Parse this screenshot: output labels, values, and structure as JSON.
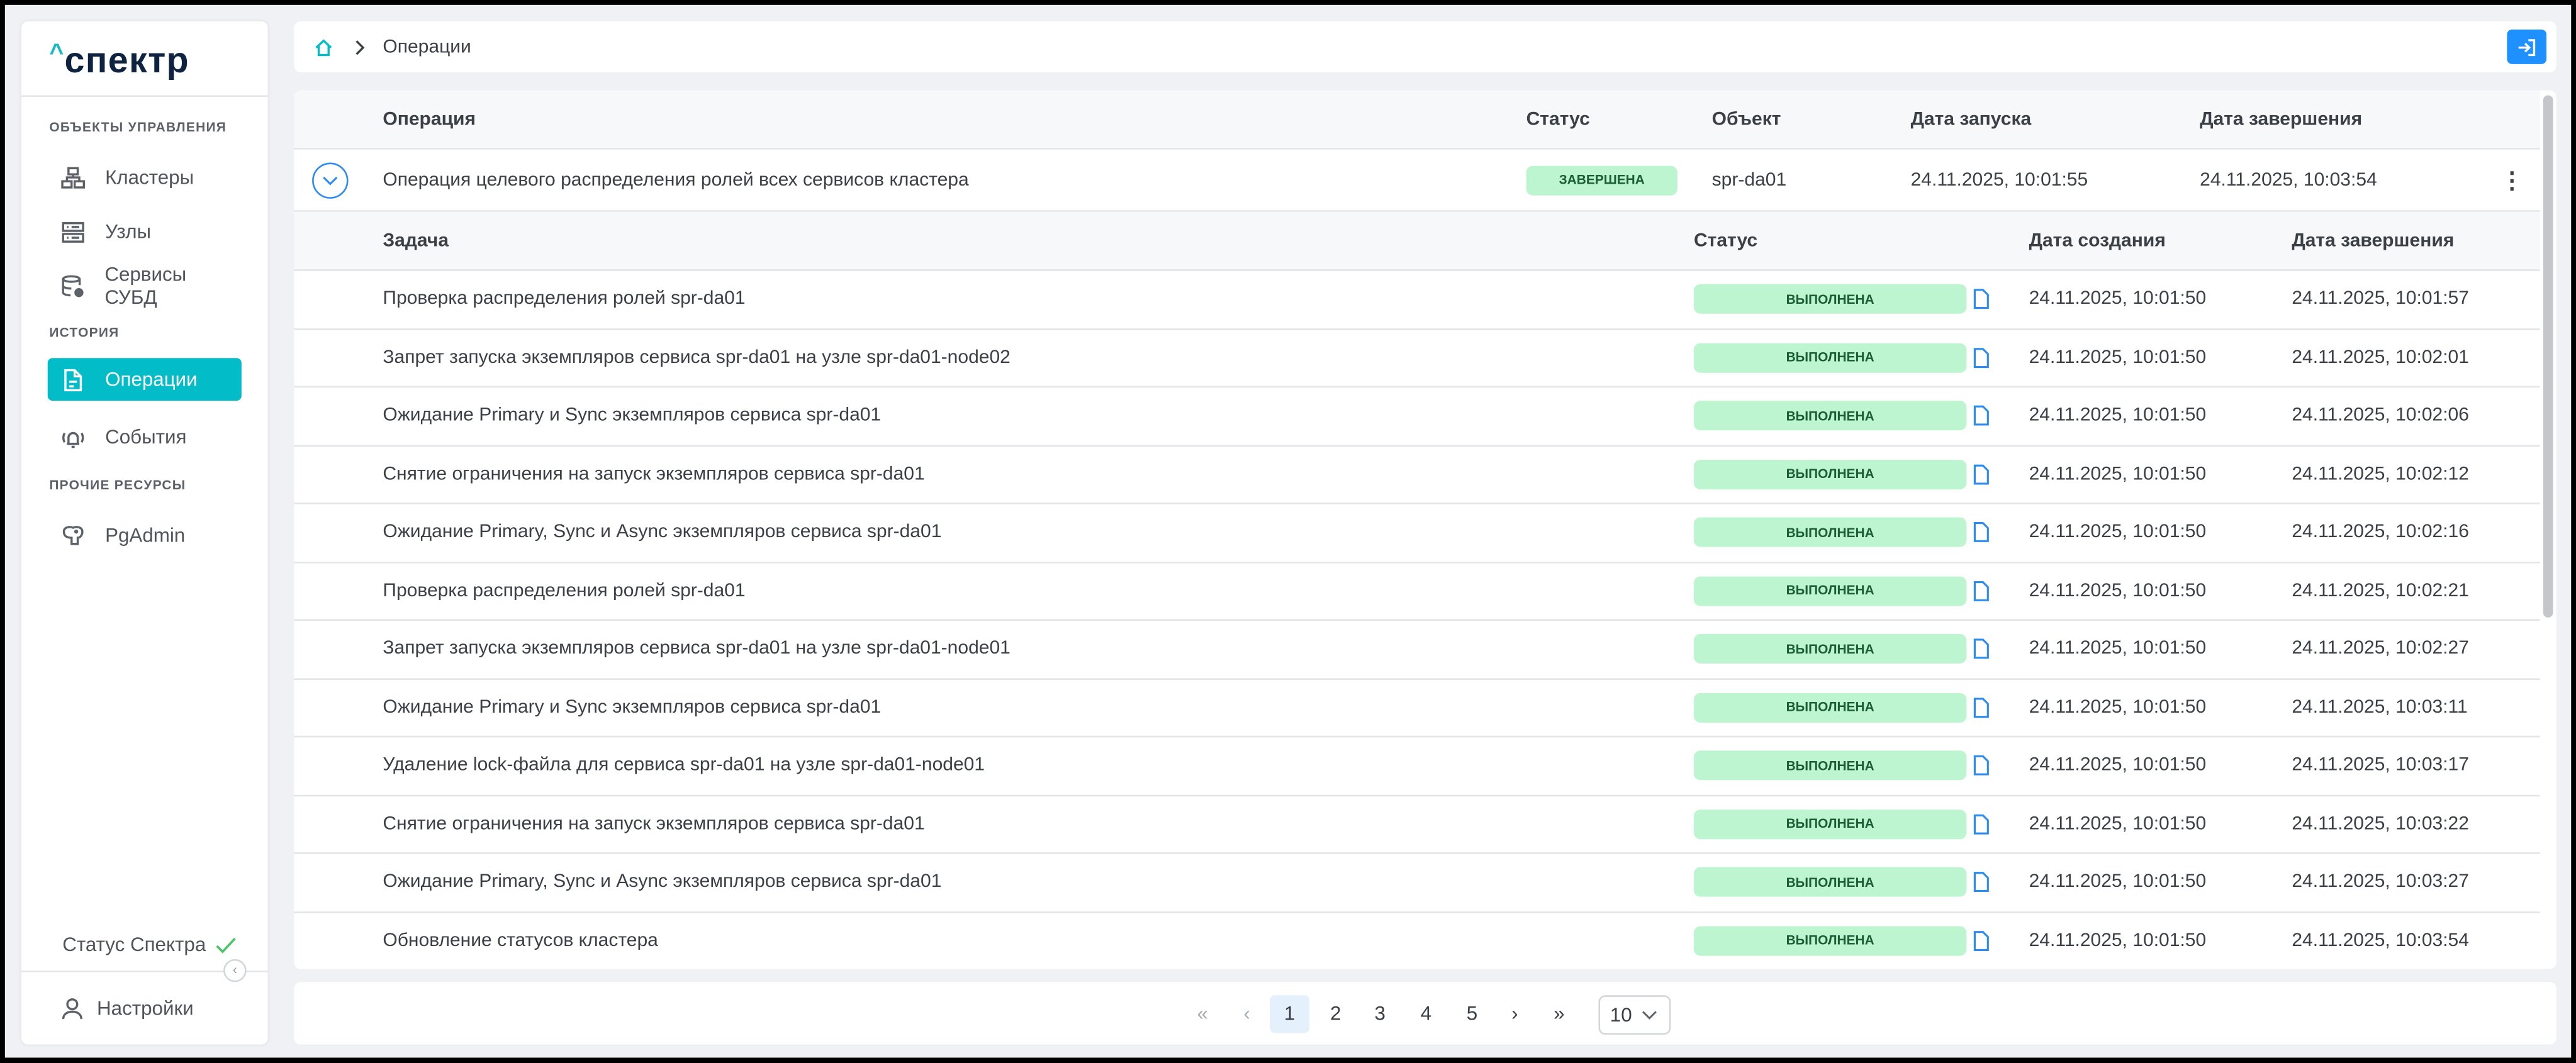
{
  "logo": {
    "caret": "^",
    "text": "спектр"
  },
  "sidebar": {
    "sections": [
      "ОБЪЕКТЫ УПРАВЛЕНИЯ",
      "ИСТОРИЯ",
      "ПРОЧИЕ РЕСУРСЫ"
    ],
    "items": [
      {
        "label": "Кластеры",
        "icon": "clusters-icon"
      },
      {
        "label": "Узлы",
        "icon": "server-icon"
      },
      {
        "label": "Сервисы СУБД",
        "icon": "database-gear-icon"
      },
      {
        "label": "Операции",
        "icon": "document-icon",
        "active": true
      },
      {
        "label": "События",
        "icon": "alarm-bell-icon"
      },
      {
        "label": "PgAdmin",
        "icon": "postgres-elephant-icon"
      }
    ],
    "status_label": "Статус Спектра",
    "settings_label": "Настройки"
  },
  "breadcrumb": {
    "current": "Операции"
  },
  "colors": {
    "accent": "#02bcc8",
    "primary": "#1e90ff",
    "badge_bg": "#bdf5d0",
    "badge_text": "#1b5e35"
  },
  "operations": {
    "headers": [
      "Операция",
      "Статус",
      "Объект",
      "Дата запуска",
      "Дата завершения"
    ],
    "row": {
      "name": "Операция целевого распределения ролей всех сервисов кластера",
      "status": "ЗАВЕРШЕНА",
      "object": "spr-da01",
      "started": "24.11.2025, 10:01:55",
      "finished": "24.11.2025, 10:03:54"
    }
  },
  "tasks": {
    "headers": [
      "Задача",
      "Статус",
      "Дата создания",
      "Дата завершения"
    ],
    "rows": [
      {
        "name": "Проверка распределения ролей spr-da01",
        "status": "ВЫПОЛНЕНА",
        "created": "24.11.2025, 10:01:50",
        "finished": "24.11.2025, 10:01:57"
      },
      {
        "name": "Запрет запуска экземпляров сервиса spr-da01 на узле spr-da01-node02",
        "status": "ВЫПОЛНЕНА",
        "created": "24.11.2025, 10:01:50",
        "finished": "24.11.2025, 10:02:01"
      },
      {
        "name": "Ожидание Primary и Sync экземпляров сервиса spr-da01",
        "status": "ВЫПОЛНЕНА",
        "created": "24.11.2025, 10:01:50",
        "finished": "24.11.2025, 10:02:06"
      },
      {
        "name": "Снятие ограничения на запуск экземпляров сервиса spr-da01",
        "status": "ВЫПОЛНЕНА",
        "created": "24.11.2025, 10:01:50",
        "finished": "24.11.2025, 10:02:12"
      },
      {
        "name": "Ожидание Primary, Sync и Async экземпляров сервиса spr-da01",
        "status": "ВЫПОЛНЕНА",
        "created": "24.11.2025, 10:01:50",
        "finished": "24.11.2025, 10:02:16"
      },
      {
        "name": "Проверка распределения ролей spr-da01",
        "status": "ВЫПОЛНЕНА",
        "created": "24.11.2025, 10:01:50",
        "finished": "24.11.2025, 10:02:21"
      },
      {
        "name": "Запрет запуска экземпляров сервиса spr-da01 на узле spr-da01-node01",
        "status": "ВЫПОЛНЕНА",
        "created": "24.11.2025, 10:01:50",
        "finished": "24.11.2025, 10:02:27"
      },
      {
        "name": "Ожидание Primary и Sync экземпляров сервиса spr-da01",
        "status": "ВЫПОЛНЕНА",
        "created": "24.11.2025, 10:01:50",
        "finished": "24.11.2025, 10:03:11"
      },
      {
        "name": "Удаление lock-файла для сервиса spr-da01 на узле spr-da01-node01",
        "status": "ВЫПОЛНЕНА",
        "created": "24.11.2025, 10:01:50",
        "finished": "24.11.2025, 10:03:17"
      },
      {
        "name": "Снятие ограничения на запуск экземпляров сервиса spr-da01",
        "status": "ВЫПОЛНЕНА",
        "created": "24.11.2025, 10:01:50",
        "finished": "24.11.2025, 10:03:22"
      },
      {
        "name": "Ожидание Primary, Sync и Async экземпляров сервиса spr-da01",
        "status": "ВЫПОЛНЕНА",
        "created": "24.11.2025, 10:01:50",
        "finished": "24.11.2025, 10:03:27"
      },
      {
        "name": "Обновление статусов кластера",
        "status": "ВЫПОЛНЕНА",
        "created": "24.11.2025, 10:01:50",
        "finished": "24.11.2025, 10:03:54"
      }
    ]
  },
  "pagination": {
    "first": "«",
    "prev": "‹",
    "pages": [
      "1",
      "2",
      "3",
      "4",
      "5"
    ],
    "current": "1",
    "next": "›",
    "last": "»",
    "page_size": "10"
  }
}
